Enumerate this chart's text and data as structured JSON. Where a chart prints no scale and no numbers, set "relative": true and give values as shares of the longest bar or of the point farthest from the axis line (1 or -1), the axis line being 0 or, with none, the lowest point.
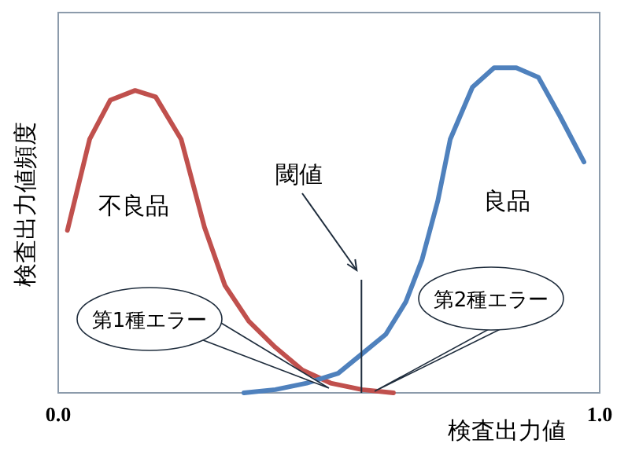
{
  "chart_data": {
    "type": "line",
    "relative": true,
    "xlabel": "検査出力値",
    "ylabel": "検査出力値頻度",
    "xlim": [
      0,
      1
    ],
    "xticks": [
      {
        "value": 0,
        "label": "0.0"
      },
      {
        "value": 1,
        "label": "1.0"
      }
    ],
    "series": [
      {
        "name": "不良品",
        "color": "#c0504d",
        "x": [
          0.017,
          0.058,
          0.096,
          0.142,
          0.18,
          0.227,
          0.27,
          0.308,
          0.352,
          0.401,
          0.451,
          0.503,
          0.561,
          0.619
        ],
        "values": [
          0.5,
          0.78,
          0.9,
          0.93,
          0.91,
          0.78,
          0.51,
          0.33,
          0.22,
          0.14,
          0.07,
          0.03,
          0.01,
          0
        ]
      },
      {
        "name": "良品",
        "color": "#4f81bd",
        "x": [
          0.343,
          0.401,
          0.459,
          0.517,
          0.561,
          0.605,
          0.642,
          0.672,
          0.701,
          0.724,
          0.765,
          0.805,
          0.846,
          0.887,
          0.927,
          0.971
        ],
        "values": [
          0,
          0.01,
          0.03,
          0.06,
          0.12,
          0.18,
          0.28,
          0.41,
          0.59,
          0.78,
          0.94,
          1,
          1,
          0.97,
          0.85,
          0.71
        ]
      }
    ],
    "ref_lines": [
      {
        "axis": "x",
        "value": 0.56,
        "label": "閾値"
      }
    ],
    "annotations": [
      "第1種エラー",
      "第2種エラー"
    ]
  }
}
